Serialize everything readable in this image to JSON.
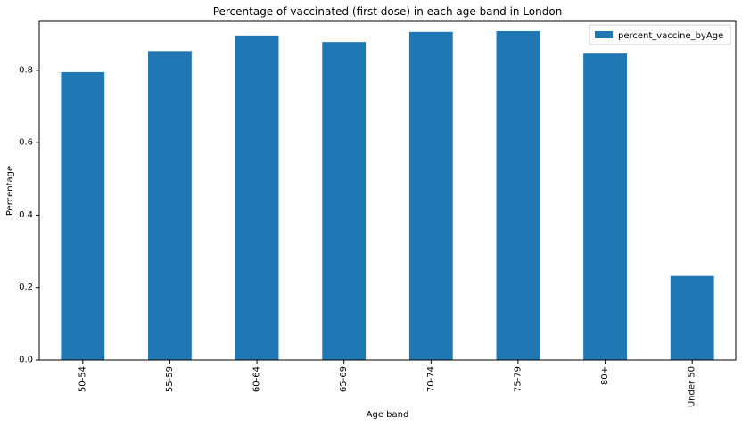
{
  "chart_data": {
    "type": "bar",
    "title": "Percentage of vaccinated (first dose) in each age band in London",
    "xlabel": "Age band",
    "ylabel": "Percentage",
    "categories": [
      "50-54",
      "55-59",
      "60-64",
      "65-69",
      "70-74",
      "75-79",
      "80+",
      "Under 50"
    ],
    "series": [
      {
        "name": "percent_vaccine_byAge",
        "color": "#1f77b4",
        "values": [
          0.795,
          0.853,
          0.896,
          0.878,
          0.906,
          0.908,
          0.846,
          0.232
        ]
      }
    ],
    "ylim": [
      0,
      0.935
    ],
    "yticks": [
      0.0,
      0.2,
      0.4,
      0.6,
      0.8
    ],
    "ytick_labels": [
      "0.0",
      "0.2",
      "0.4",
      "0.6",
      "0.8"
    ],
    "legend_position": "top-right",
    "grid": false
  }
}
